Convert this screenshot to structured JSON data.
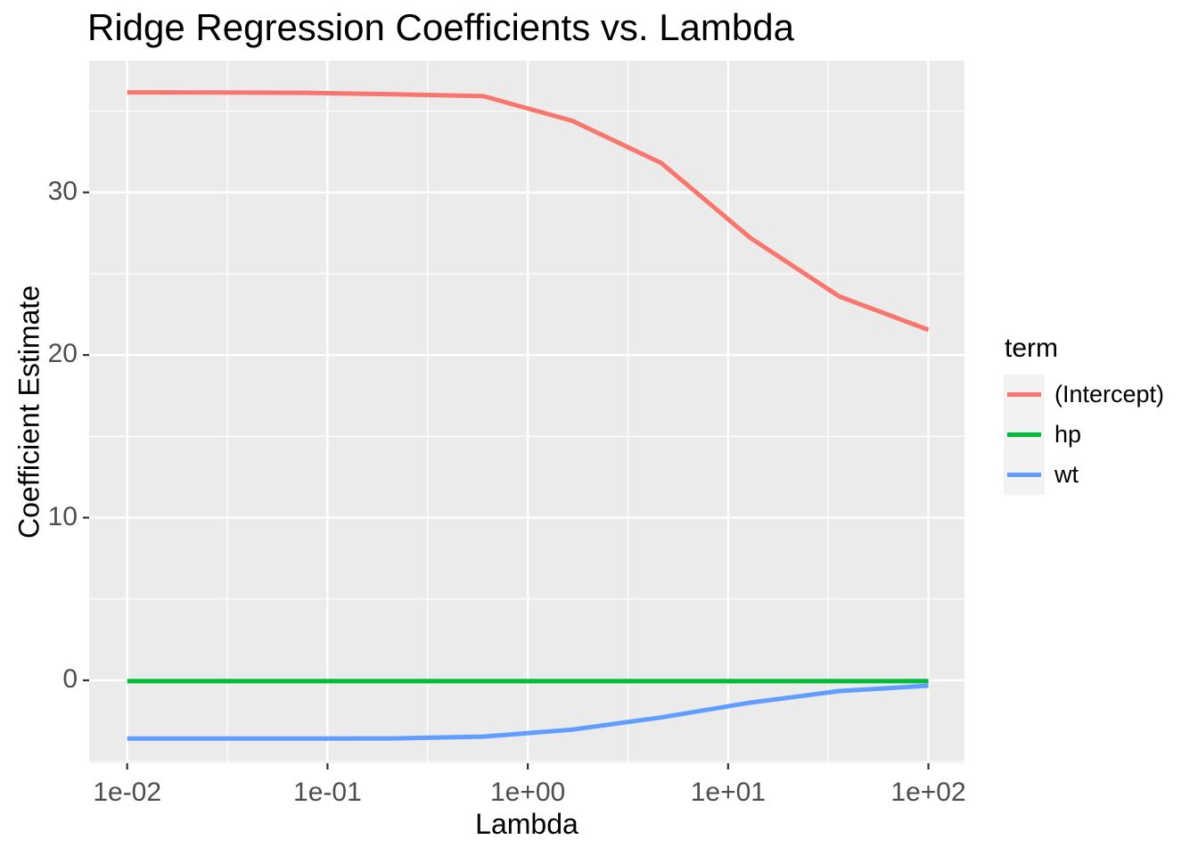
{
  "chart_data": {
    "type": "line",
    "title": "Ridge Regression Coefficients vs. Lambda",
    "xlabel": "Lambda",
    "ylabel": "Coefficient Estimate",
    "x_scale": "log10",
    "x": [
      0.01,
      0.0278,
      0.0774,
      0.2154,
      0.5995,
      1.6681,
      4.6416,
      12.9155,
      35.9381,
      100
    ],
    "x_log10": [
      -2,
      -1.5556,
      -1.1111,
      -0.6667,
      -0.2222,
      0.2222,
      0.6667,
      1.1111,
      1.5556,
      2
    ],
    "series": [
      {
        "name": "(Intercept)",
        "color": "#F8766D",
        "values": [
          36.15,
          36.14,
          36.12,
          36.03,
          35.92,
          34.4,
          31.8,
          27.2,
          23.6,
          21.55
        ]
      },
      {
        "name": "hp",
        "color": "#00BA38",
        "values": [
          -0.05,
          -0.05,
          -0.05,
          -0.05,
          -0.05,
          -0.05,
          -0.05,
          -0.05,
          -0.05,
          -0.05
        ]
      },
      {
        "name": "wt",
        "color": "#619CFF",
        "values": [
          -3.58,
          -3.58,
          -3.58,
          -3.57,
          -3.46,
          -3.03,
          -2.28,
          -1.37,
          -0.66,
          -0.33
        ]
      }
    ],
    "x_ticks": [
      -2,
      -1,
      0,
      1,
      2
    ],
    "x_tick_labels": [
      "1e-02",
      "1e-01",
      "1e+00",
      "1e+01",
      "1e+02"
    ],
    "x_minor_ticks": [
      -1.5,
      -0.5,
      0.5,
      1.5
    ],
    "y_ticks": [
      30,
      20,
      10,
      0
    ],
    "y_tick_labels": [
      "30",
      "20",
      "10",
      "0"
    ],
    "y_minor_ticks": [
      35,
      25,
      15,
      5,
      -5
    ],
    "xlim_log10": [
      -2.19,
      2.18
    ],
    "ylim": [
      -5.1,
      38.1
    ],
    "legend_title": "term",
    "legend_position": "right",
    "grid": true
  },
  "style": {
    "background": "#FFFFFF",
    "panel_bg": "#EBEBEB",
    "grid_color": "#FFFFFF",
    "tick_mark_color": "#333333",
    "tick_label_color": "#4D4D4D",
    "legend_key_bg": "#F2F2F2",
    "text_color": "#000000"
  }
}
